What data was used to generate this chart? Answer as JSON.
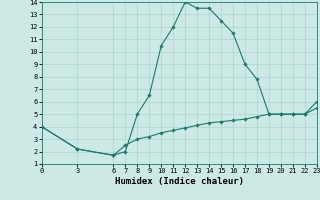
{
  "title": "",
  "xlabel": "Humidex (Indice chaleur)",
  "ylabel": "",
  "bg_color": "#cce9e5",
  "grid_color": "#add4cf",
  "line_color": "#1a7a6e",
  "line1_x": [
    0,
    3,
    6,
    7,
    8,
    9,
    10,
    11,
    12,
    13,
    14,
    15,
    16,
    17,
    18,
    19,
    20,
    21,
    22,
    23
  ],
  "line1_y": [
    4.0,
    2.2,
    1.7,
    2.0,
    5.0,
    6.5,
    10.5,
    12.0,
    14.0,
    13.5,
    13.5,
    12.5,
    11.5,
    9.0,
    7.8,
    5.0,
    5.0,
    5.0,
    5.0,
    6.0
  ],
  "line2_x": [
    0,
    3,
    6,
    7,
    8,
    9,
    10,
    11,
    12,
    13,
    14,
    15,
    16,
    17,
    18,
    19,
    20,
    21,
    22,
    23
  ],
  "line2_y": [
    4.0,
    2.2,
    1.7,
    2.5,
    3.0,
    3.2,
    3.5,
    3.7,
    3.9,
    4.1,
    4.3,
    4.4,
    4.5,
    4.6,
    4.8,
    5.0,
    5.0,
    5.0,
    5.0,
    5.5
  ],
  "xlim": [
    0,
    23
  ],
  "ylim": [
    1,
    14
  ],
  "xticks": [
    0,
    3,
    6,
    7,
    8,
    9,
    10,
    11,
    12,
    13,
    14,
    15,
    16,
    17,
    18,
    19,
    20,
    21,
    22,
    23
  ],
  "yticks": [
    1,
    2,
    3,
    4,
    5,
    6,
    7,
    8,
    9,
    10,
    11,
    12,
    13,
    14
  ],
  "tick_fontsize": 5.0,
  "xlabel_fontsize": 6.5,
  "marker": "D",
  "marker_size": 1.8,
  "linewidth": 0.8
}
